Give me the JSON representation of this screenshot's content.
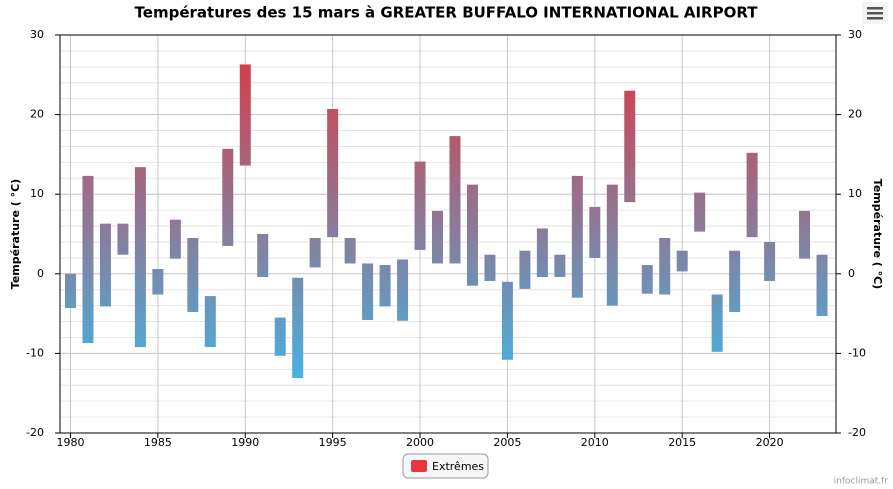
{
  "chart_data": {
    "type": "range_bar",
    "title": "Températures des 15 mars à GREATER BUFFALO INTERNATIONAL AIRPORT",
    "y_label": "Température ( °C)",
    "y2_label": "Température ( °C)",
    "source": "infoclimat.fr",
    "x": [
      1980,
      1981,
      1982,
      1983,
      1984,
      1985,
      1986,
      1987,
      1988,
      1989,
      1990,
      1991,
      1992,
      1993,
      1994,
      1995,
      1996,
      1997,
      1998,
      1999,
      2000,
      2001,
      2002,
      2003,
      2004,
      2005,
      2006,
      2007,
      2008,
      2009,
      2010,
      2011,
      2012,
      2013,
      2014,
      2015,
      2016,
      2017,
      2018,
      2019,
      2020,
      2021,
      2022,
      2023
    ],
    "series": [
      {
        "name": "Extrêmes",
        "color": "#e8373e",
        "gradient": [
          "#e2343e",
          "#2ec6fa"
        ],
        "low": [
          -4.3,
          -8.7,
          -4.1,
          2.4,
          -9.2,
          -2.6,
          1.9,
          -4.8,
          -9.2,
          3.5,
          13.6,
          -0.4,
          -10.3,
          -13.1,
          0.8,
          4.6,
          1.3,
          -5.8,
          -4.1,
          -5.9,
          3.0,
          1.3,
          1.3,
          -1.5,
          -0.9,
          -10.8,
          -1.9,
          -0.4,
          -0.4,
          -3.0,
          2.0,
          -4.0,
          9.0,
          -2.5,
          -2.6,
          0.3,
          5.3,
          -9.8,
          -4.8,
          4.6,
          -0.9,
          null,
          1.9,
          -5.3
        ],
        "high": [
          0.0,
          12.3,
          6.3,
          6.3,
          13.4,
          0.6,
          6.8,
          4.5,
          -2.8,
          15.7,
          26.3,
          5.0,
          -5.5,
          -0.5,
          4.5,
          20.7,
          4.5,
          1.3,
          1.1,
          1.8,
          14.1,
          7.9,
          17.3,
          11.2,
          2.4,
          -1.0,
          2.9,
          5.7,
          2.4,
          12.3,
          8.4,
          11.2,
          23.0,
          1.1,
          4.5,
          2.9,
          10.2,
          -2.6,
          2.9,
          15.2,
          4.0,
          null,
          7.9,
          2.4
        ]
      }
    ],
    "xlim": [
      1979.4,
      2023.8
    ],
    "xticks": [
      1980,
      1985,
      1990,
      1995,
      2000,
      2005,
      2010,
      2015,
      2020
    ],
    "ylim": [
      -20,
      30
    ],
    "yticks": [
      -20,
      -10,
      0,
      10,
      20,
      30
    ],
    "y2lim": [
      -20,
      30
    ],
    "y2ticks": [
      -20,
      -10,
      0,
      10,
      20,
      30
    ],
    "minor_grid_step": 2,
    "grid": true
  }
}
